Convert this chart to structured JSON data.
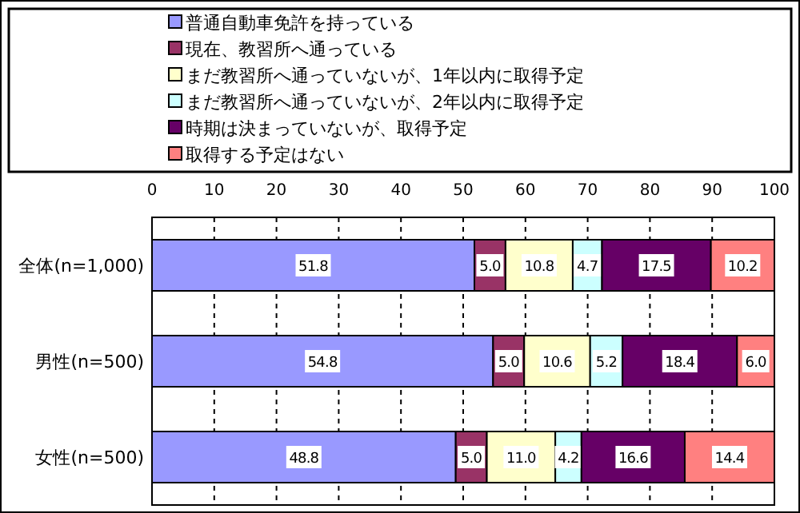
{
  "chart_data": {
    "type": "bar",
    "orientation": "horizontal",
    "stacked": true,
    "categories": [
      "全体(n=1,000)",
      "男性(n=500)",
      "女性(n=500)"
    ],
    "series": [
      {
        "name": "普通自動車免許を持っている",
        "color": "#9999ff",
        "values": [
          51.8,
          54.8,
          48.8
        ],
        "value_labels": [
          "51.8",
          "54.8",
          "48.8"
        ]
      },
      {
        "name": "現在、教習所へ通っている",
        "color": "#993366",
        "values": [
          5.0,
          5.0,
          5.0
        ],
        "value_labels": [
          "5.0",
          "5.0",
          "5.0"
        ]
      },
      {
        "name": "まだ教習所へ通っていないが、1年以内に取得予定",
        "color": "#ffffcc",
        "values": [
          10.8,
          10.6,
          11.0
        ],
        "value_labels": [
          "10.8",
          "10.6",
          "11.0"
        ]
      },
      {
        "name": "まだ教習所へ通っていないが、2年以内に取得予定",
        "color": "#ccffff",
        "values": [
          4.7,
          5.2,
          4.2
        ],
        "value_labels": [
          "4.7",
          "5.2",
          "4.2"
        ]
      },
      {
        "name": "時期は決まっていないが、取得予定",
        "color": "#660066",
        "values": [
          17.5,
          18.4,
          16.6
        ],
        "value_labels": [
          "17.5",
          "18.4",
          "16.6"
        ]
      },
      {
        "name": "取得する予定はない",
        "color": "#ff8080",
        "values": [
          10.2,
          6.0,
          14.4
        ],
        "value_labels": [
          "10.2",
          "6.0",
          "14.4"
        ]
      }
    ],
    "xlim": [
      0,
      100
    ],
    "xticks": [
      0,
      10,
      20,
      30,
      40,
      50,
      60,
      70,
      80,
      90,
      100
    ],
    "grid": "x",
    "legend": "top"
  }
}
